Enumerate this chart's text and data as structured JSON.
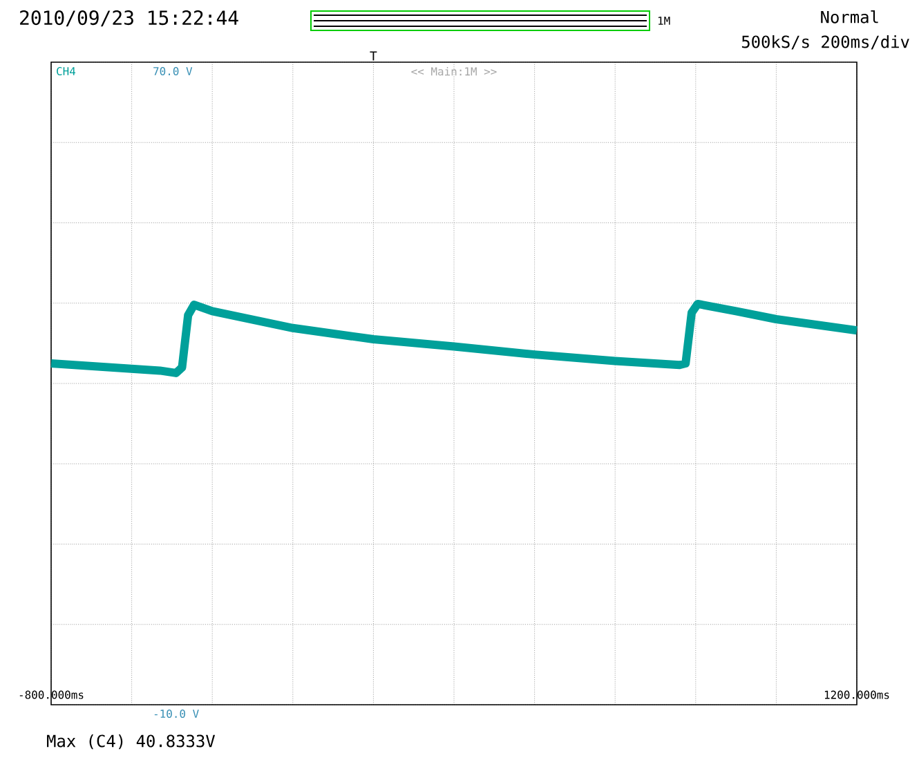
{
  "chart_data": {
    "type": "line",
    "title": "2010/09/23 15:22:44",
    "series": [
      {
        "name": "CH4",
        "color": "#00a09a",
        "x": [
          -800,
          -530,
          -490,
          -475,
          -460,
          -445,
          -400,
          -200,
          0,
          200,
          400,
          600,
          760,
          775,
          790,
          805,
          900,
          1000,
          1200
        ],
        "values": [
          32.5,
          31.6,
          31.3,
          32,
          38.5,
          39.8,
          39,
          36.9,
          35.5,
          34.6,
          33.6,
          32.8,
          32.3,
          32.5,
          38.8,
          39.9,
          39,
          38,
          36.6
        ]
      }
    ],
    "xlim": [
      -800,
      1200
    ],
    "xticks": [
      {
        "value": -800,
        "label": "-800.000ms"
      },
      {
        "value": -600,
        "label": null
      },
      {
        "value": -400,
        "label": null
      },
      {
        "value": -200,
        "label": null
      },
      {
        "value": 0,
        "label": null
      },
      {
        "value": 200,
        "label": null
      },
      {
        "value": 400,
        "label": null
      },
      {
        "value": 600,
        "label": null
      },
      {
        "value": 800,
        "label": null
      },
      {
        "value": 1000,
        "label": null
      },
      {
        "value": 1200,
        "label": "1200.000ms"
      }
    ],
    "ylim": [
      -10,
      70
    ],
    "yticks": [
      {
        "value": -10,
        "label": "-10.0 V"
      },
      {
        "value": 0,
        "label": null
      },
      {
        "value": 10,
        "label": null
      },
      {
        "value": 20,
        "label": null
      },
      {
        "value": 30,
        "label": null
      },
      {
        "value": 40,
        "label": null
      },
      {
        "value": 50,
        "label": null
      },
      {
        "value": 60,
        "label": null
      },
      {
        "value": 70,
        "label": "70.0 V"
      }
    ],
    "grid": true,
    "marker": "none",
    "line_style": "solid",
    "annotations": [
      "Normal",
      "500kS/s 200ms/div",
      "<< Main:1M >>",
      "Max (C4)   40.8333V",
      "1M",
      "T"
    ]
  }
}
